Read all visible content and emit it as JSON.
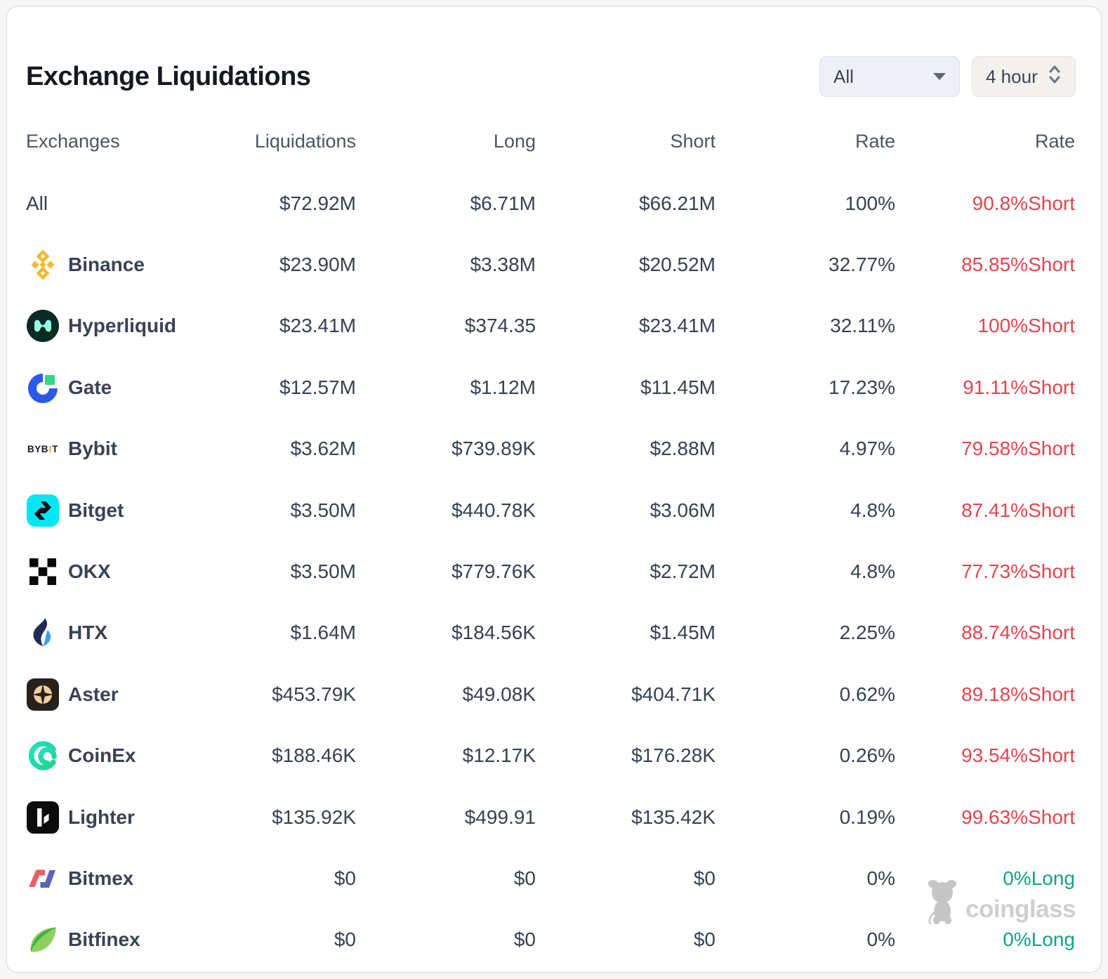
{
  "title": "Exchange Liquidations",
  "controls": {
    "symbol_filter": {
      "value": "All",
      "icon": "chevron-down-icon"
    },
    "timeframe": {
      "value": "4 hour",
      "icon": "up-down-chevron-icon"
    }
  },
  "table": {
    "columns": [
      "Exchanges",
      "Liquidations",
      "Long",
      "Short",
      "Rate",
      "Rate"
    ],
    "rows": [
      {
        "exchange": "All",
        "icon": "",
        "liquidations": "$72.92M",
        "long": "$6.71M",
        "short": "$66.21M",
        "rate": "100%",
        "bias": "90.8%Short",
        "bias_dir": "short"
      },
      {
        "exchange": "Binance",
        "icon": "binance-icon",
        "liquidations": "$23.90M",
        "long": "$3.38M",
        "short": "$20.52M",
        "rate": "32.77%",
        "bias": "85.85%Short",
        "bias_dir": "short"
      },
      {
        "exchange": "Hyperliquid",
        "icon": "hyperliquid-icon",
        "liquidations": "$23.41M",
        "long": "$374.35",
        "short": "$23.41M",
        "rate": "32.11%",
        "bias": "100%Short",
        "bias_dir": "short"
      },
      {
        "exchange": "Gate",
        "icon": "gate-icon",
        "liquidations": "$12.57M",
        "long": "$1.12M",
        "short": "$11.45M",
        "rate": "17.23%",
        "bias": "91.11%Short",
        "bias_dir": "short"
      },
      {
        "exchange": "Bybit",
        "icon": "bybit-icon",
        "liquidations": "$3.62M",
        "long": "$739.89K",
        "short": "$2.88M",
        "rate": "4.97%",
        "bias": "79.58%Short",
        "bias_dir": "short"
      },
      {
        "exchange": "Bitget",
        "icon": "bitget-icon",
        "liquidations": "$3.50M",
        "long": "$440.78K",
        "short": "$3.06M",
        "rate": "4.8%",
        "bias": "87.41%Short",
        "bias_dir": "short"
      },
      {
        "exchange": "OKX",
        "icon": "okx-icon",
        "liquidations": "$3.50M",
        "long": "$779.76K",
        "short": "$2.72M",
        "rate": "4.8%",
        "bias": "77.73%Short",
        "bias_dir": "short"
      },
      {
        "exchange": "HTX",
        "icon": "htx-icon",
        "liquidations": "$1.64M",
        "long": "$184.56K",
        "short": "$1.45M",
        "rate": "2.25%",
        "bias": "88.74%Short",
        "bias_dir": "short"
      },
      {
        "exchange": "Aster",
        "icon": "aster-icon",
        "liquidations": "$453.79K",
        "long": "$49.08K",
        "short": "$404.71K",
        "rate": "0.62%",
        "bias": "89.18%Short",
        "bias_dir": "short"
      },
      {
        "exchange": "CoinEx",
        "icon": "coinex-icon",
        "liquidations": "$188.46K",
        "long": "$12.17K",
        "short": "$176.28K",
        "rate": "0.26%",
        "bias": "93.54%Short",
        "bias_dir": "short"
      },
      {
        "exchange": "Lighter",
        "icon": "lighter-icon",
        "liquidations": "$135.92K",
        "long": "$499.91",
        "short": "$135.42K",
        "rate": "0.19%",
        "bias": "99.63%Short",
        "bias_dir": "short"
      },
      {
        "exchange": "Bitmex",
        "icon": "bitmex-icon",
        "liquidations": "$0",
        "long": "$0",
        "short": "$0",
        "rate": "0%",
        "bias": "0%Long",
        "bias_dir": "long"
      },
      {
        "exchange": "Bitfinex",
        "icon": "bitfinex-icon",
        "liquidations": "$0",
        "long": "$0",
        "short": "$0",
        "rate": "0%",
        "bias": "0%Long",
        "bias_dir": "long"
      }
    ]
  },
  "watermark": {
    "label": "coinglass",
    "icon": "coinglass-bull-icon"
  },
  "colors": {
    "short": "#e2464f",
    "long": "#17a086",
    "binance_yellow": "#f3ba2f",
    "bitget_cyan": "#00e6f2",
    "bybit_orange": "#f7a600",
    "gate_blue": "#2b5ae9",
    "gate_green": "#37d487"
  }
}
